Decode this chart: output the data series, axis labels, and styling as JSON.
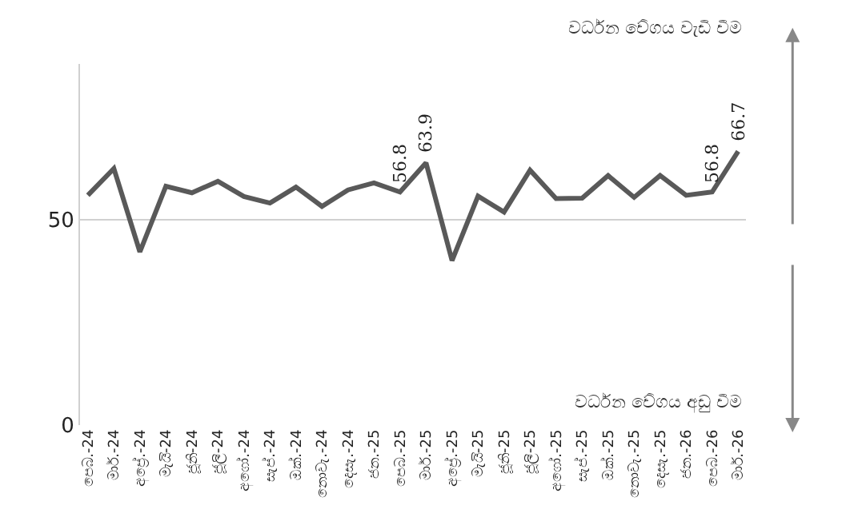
{
  "chart_data": {
    "type": "line",
    "categories": [
      "පෙබ.-24",
      "මාර්.-24",
      "අප්‍රේ.-24",
      "මැයි-24",
      "ජූනි-24",
      "ජූලි-24",
      "අගෝ.-24",
      "සැප්.-24",
      "ඔක්.-24",
      "නොවැ.-24",
      "දෙසැ.-24",
      "ජන.-25",
      "පෙබ.-25",
      "මාර්.-25",
      "අප්‍රේ.-25",
      "මැයි-25",
      "ජූනි-25",
      "ජූලි-25",
      "අගෝ.-25",
      "සැප්.-25",
      "ඔක්.-25",
      "නොවැ.-25",
      "දෙසැ.-25",
      "ජන.-26",
      "පෙබ.-26",
      "මාර්.-26"
    ],
    "series": [
      {
        "color": "#595959",
        "values": [
          56.0,
          62.5,
          42.2,
          58.2,
          56.6,
          59.4,
          55.7,
          54.1,
          58.0,
          53.3,
          57.3,
          59.0,
          56.8,
          63.9,
          40.1,
          55.8,
          51.9,
          62.1,
          55.2,
          55.3,
          60.8,
          55.5,
          60.8,
          56.0,
          56.8,
          66.7
        ],
        "value_labels": [
          null,
          null,
          null,
          null,
          null,
          null,
          null,
          null,
          null,
          null,
          null,
          null,
          "56.8",
          "63.9",
          null,
          null,
          null,
          null,
          null,
          null,
          null,
          null,
          null,
          null,
          "56.8",
          "66.7"
        ]
      }
    ],
    "ylim": [
      0,
      88
    ],
    "yticks": [
      0,
      50
    ],
    "grid": "y",
    "legend": false,
    "marker": "none",
    "line_style": "solid",
    "annotations": [
      "වර්ධන වේගය වැඩි වීම",
      "වර්ධන වේගය අඩු වීම"
    ]
  }
}
